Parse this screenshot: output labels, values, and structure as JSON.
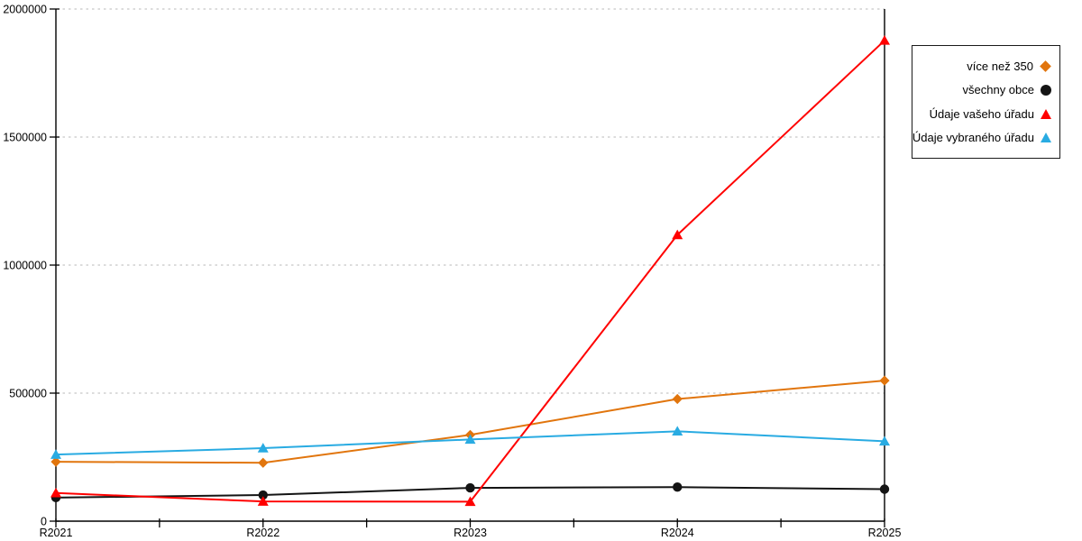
{
  "chart_data": {
    "type": "line",
    "title": "",
    "xlabel": "",
    "ylabel": "",
    "categories": [
      "R2021",
      "R2022",
      "R2023",
      "R2024",
      "R2025"
    ],
    "ylim": [
      0,
      2000000
    ],
    "y_ticks": [
      0,
      500000,
      1000000,
      1500000,
      2000000
    ],
    "y_tick_labels": [
      "0",
      "500000",
      "1000000",
      "1500000",
      "2000000"
    ],
    "grid": "horizontal dotted lines at major y ticks",
    "legend_position": "outside top-right, boxed, markers on right",
    "series": [
      {
        "name": "více než 350",
        "color": "#E1750D",
        "marker": "diamond",
        "values": [
          232000,
          228000,
          337000,
          477000,
          549000
        ]
      },
      {
        "name": "všechny obce",
        "color": "#141414",
        "marker": "circle",
        "values": [
          92000,
          102000,
          130000,
          133000,
          125000
        ]
      },
      {
        "name": "Údaje vašeho úřadu",
        "color": "#FF0000",
        "marker": "triangle",
        "values": [
          110000,
          77000,
          76000,
          1118000,
          1877000
        ]
      },
      {
        "name": "Údaje vybraného úřadu",
        "color": "#29ABE2",
        "marker": "triangle",
        "values": [
          260000,
          285000,
          319000,
          351000,
          312000
        ]
      }
    ]
  },
  "colors": {
    "background": "#ffffff",
    "axis": "#000000",
    "gridline": "#b8b8b8",
    "tick_label": "#000000"
  }
}
